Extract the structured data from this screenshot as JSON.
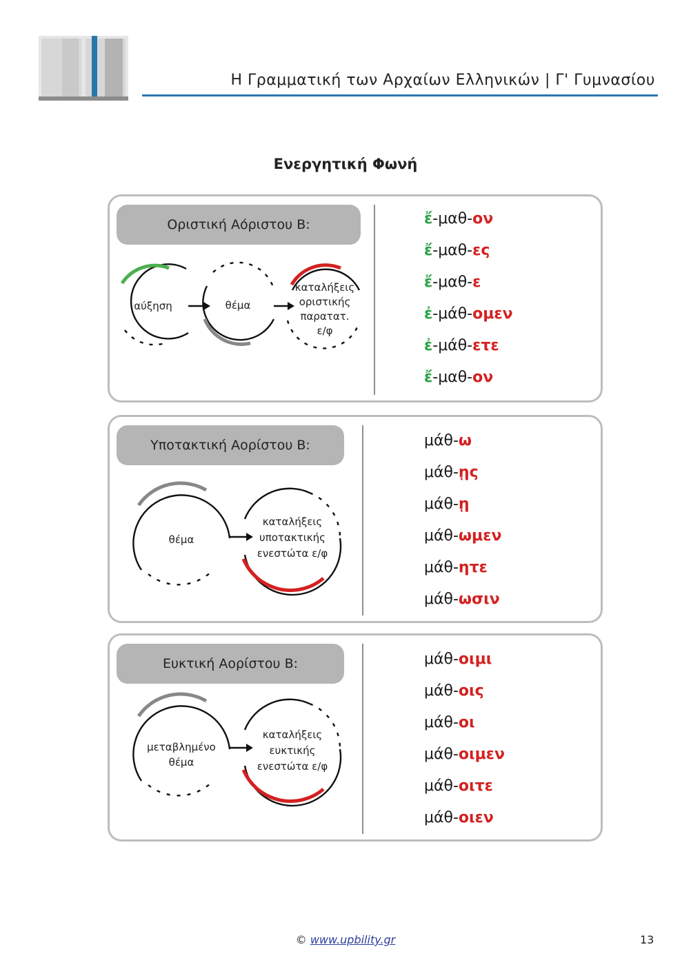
{
  "header": {
    "title": "Η Γραμματική των Αρχαίων Ελληνικών | Γ' Γυμνασίου"
  },
  "section_title": "Ενεργητική Φωνή",
  "panels": [
    {
      "label": "Οριστική Αόριστου Β:",
      "diagram": [
        "αύξηση",
        "θέμα",
        "καταλήξεις",
        "οριστικής",
        "παρατατ.",
        "ε/φ"
      ],
      "forms": [
        {
          "aug": "ἔ",
          "stem": "-μαθ-",
          "end": "ον"
        },
        {
          "aug": "ἔ",
          "stem": "-μαθ-",
          "end": "ες"
        },
        {
          "aug": "ἔ",
          "stem": "-μαθ-",
          "end": "ε"
        },
        {
          "aug": "ἐ",
          "stem": "-μάθ-",
          "end": "ομεν"
        },
        {
          "aug": "ἐ",
          "stem": "-μάθ-",
          "end": "ετε"
        },
        {
          "aug": "ἔ",
          "stem": "-μαθ-",
          "end": "ον"
        }
      ]
    },
    {
      "label": "Υποτακτική Αορίστου Β:",
      "diagram": [
        "θέμα",
        "καταλήξεις",
        "υποτακτικής",
        "ενεστώτα ε/φ"
      ],
      "forms": [
        {
          "aug": "",
          "stem": "μάθ-",
          "end": "ω"
        },
        {
          "aug": "",
          "stem": "μάθ-",
          "end": "ῃς"
        },
        {
          "aug": "",
          "stem": "μάθ-",
          "end": "ῃ"
        },
        {
          "aug": "",
          "stem": "μάθ-",
          "end": "ωμεν"
        },
        {
          "aug": "",
          "stem": "μάθ-",
          "end": "ητε"
        },
        {
          "aug": "",
          "stem": "μάθ-",
          "end": "ωσιν"
        }
      ]
    },
    {
      "label": "Ευκτική Αορίστου Β:",
      "diagram": [
        "μεταβλημένο",
        "θέμα",
        "καταλήξεις",
        "ευκτικής",
        "ενεστώτα ε/φ"
      ],
      "forms": [
        {
          "aug": "",
          "stem": "μάθ-",
          "end": "οιμι"
        },
        {
          "aug": "",
          "stem": "μάθ-",
          "end": "οις"
        },
        {
          "aug": "",
          "stem": "μάθ-",
          "end": "οι"
        },
        {
          "aug": "",
          "stem": "μάθ-",
          "end": "οιμεν"
        },
        {
          "aug": "",
          "stem": "μάθ-",
          "end": "οιτε"
        },
        {
          "aug": "",
          "stem": "μάθ-",
          "end": "οιεν"
        }
      ]
    }
  ],
  "footer": {
    "copyright": "©",
    "link": "www.upbility.gr",
    "page_number": "13"
  },
  "colors": {
    "augment": "#2ea044",
    "ending": "#d42121",
    "header_line": "#2a77ad",
    "pill": "#b5b5b5"
  }
}
